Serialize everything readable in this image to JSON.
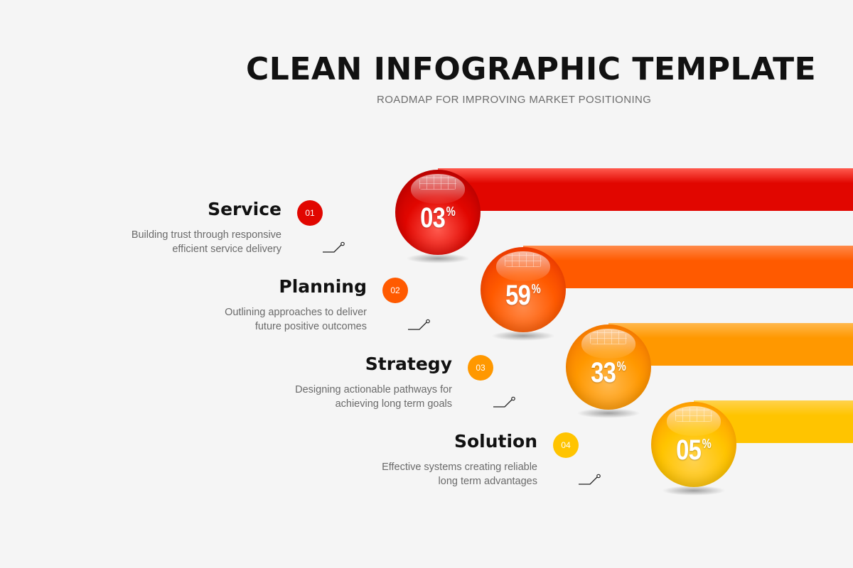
{
  "header": {
    "title": "CLEAN INFOGRAPHIC TEMPLATE",
    "subtitle": "ROADMAP FOR IMPROVING MARKET POSITIONING"
  },
  "items": [
    {
      "title": "Service",
      "number": "01",
      "description_line1": "Building trust through responsive",
      "description_line2": "efficient service delivery",
      "percent_value": "03",
      "percent_sign": "%",
      "color": "#e10600",
      "color_light": "#ff5a4e",
      "color_dark": "#a80000"
    },
    {
      "title": "Planning",
      "number": "02",
      "description_line1": "Outlining approaches to deliver",
      "description_line2": "future positive outcomes",
      "percent_value": "59",
      "percent_sign": "%",
      "color": "#ff5a00",
      "color_light": "#ff8a4a",
      "color_dark": "#e52a00"
    },
    {
      "title": "Strategy",
      "number": "03",
      "description_line1": "Designing actionable pathways for",
      "description_line2": "achieving long term goals",
      "percent_value": "33",
      "percent_sign": "%",
      "color": "#ff9800",
      "color_light": "#ffb84d",
      "color_dark": "#f36a00"
    },
    {
      "title": "Solution",
      "number": "04",
      "description_line1": "Effective systems creating reliable",
      "description_line2": "long term advantages",
      "percent_value": "05",
      "percent_sign": "%",
      "color": "#ffc400",
      "color_light": "#ffd24d",
      "color_dark": "#ff8a00"
    }
  ]
}
